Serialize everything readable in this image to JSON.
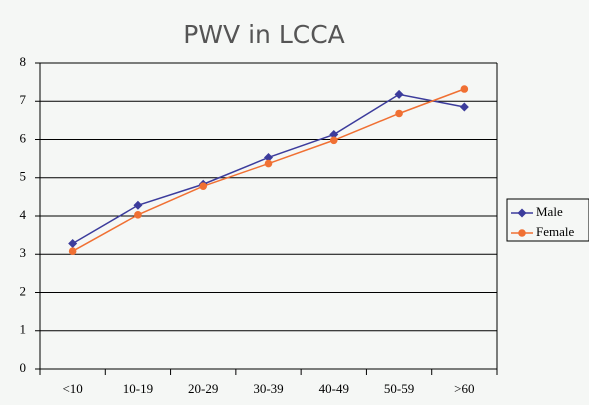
{
  "chart_data": {
    "type": "line",
    "title": "PWV in LCCA",
    "categories": [
      "<10",
      "10-19",
      "20-29",
      "30-39",
      "40-49",
      "50-59",
      ">60"
    ],
    "series": [
      {
        "name": "Male",
        "color": "#3c3c9c",
        "marker": "diamond",
        "values": [
          3.28,
          4.28,
          4.83,
          5.53,
          6.13,
          7.18,
          6.85
        ]
      },
      {
        "name": "Female",
        "color": "#f07033",
        "marker": "circle",
        "values": [
          3.08,
          4.03,
          4.78,
          5.37,
          5.98,
          6.68,
          7.32
        ]
      }
    ],
    "ylim": [
      0,
      8
    ],
    "yticks": [
      0,
      1,
      2,
      3,
      4,
      5,
      6,
      7,
      8
    ],
    "grid": true,
    "legend": "right"
  }
}
